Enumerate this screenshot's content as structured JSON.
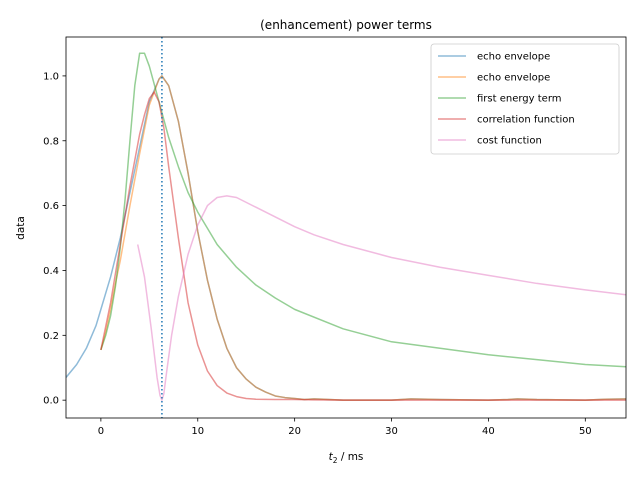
{
  "chart_data": {
    "type": "line",
    "title": "(enhancement) power terms",
    "xlabel_main": "t",
    "xlabel_sub": "2",
    "xlabel_rest": " / ms",
    "ylabel": "data",
    "xlim": [
      -3.6,
      54.2
    ],
    "ylim": [
      -0.055,
      1.12
    ],
    "xticks": [
      0,
      10,
      20,
      30,
      40,
      50
    ],
    "yticks": [
      0.0,
      0.2,
      0.4,
      0.6,
      0.8,
      1.0
    ],
    "xtick_labels": [
      "0",
      "10",
      "20",
      "30",
      "40",
      "50"
    ],
    "ytick_labels": [
      "0.0",
      "0.2",
      "0.4",
      "0.6",
      "0.8",
      "1.0"
    ],
    "vline": {
      "x": 6.3,
      "color": "#1f77b4",
      "style": "dotted"
    },
    "legend_position": "upper-right",
    "series": [
      {
        "name": "echo envelope",
        "color": "#1f77b4",
        "x": [
          -3.6,
          -2.5,
          -1.5,
          -0.5,
          0,
          1,
          2,
          3,
          4,
          5,
          6,
          6.3,
          7,
          8,
          9,
          10,
          11,
          12,
          13,
          14,
          15,
          16,
          17,
          18,
          19,
          20,
          21,
          22,
          23,
          25,
          28,
          30,
          32,
          35,
          38,
          40,
          42,
          43,
          45,
          48,
          50,
          52,
          54.2
        ],
        "y": [
          0.07,
          0.11,
          0.16,
          0.23,
          0.28,
          0.38,
          0.5,
          0.64,
          0.78,
          0.92,
          0.99,
          1.0,
          0.97,
          0.86,
          0.7,
          0.52,
          0.37,
          0.25,
          0.16,
          0.1,
          0.065,
          0.04,
          0.025,
          0.013,
          0.008,
          0.005,
          0.002,
          0.004,
          0.003,
          0.0,
          0.0,
          0.0,
          0.004,
          0.002,
          0.001,
          0.0,
          0.002,
          0.004,
          0.002,
          0.001,
          0.0,
          0.003,
          0.004
        ]
      },
      {
        "name": "echo envelope",
        "color": "#ff7f0e",
        "x": [
          0,
          0.5,
          1,
          1.5,
          2,
          3,
          4,
          5,
          6,
          6.3,
          7,
          8,
          9,
          10,
          11,
          12,
          13,
          14,
          15,
          16,
          17,
          18,
          19,
          20,
          21,
          22,
          23,
          25,
          28,
          30,
          32,
          35,
          38,
          40,
          42,
          43,
          45,
          48,
          50,
          52,
          54.2
        ],
        "y": [
          0.155,
          0.21,
          0.28,
          0.36,
          0.43,
          0.6,
          0.76,
          0.91,
          0.99,
          1.0,
          0.97,
          0.86,
          0.7,
          0.52,
          0.37,
          0.25,
          0.16,
          0.1,
          0.065,
          0.04,
          0.025,
          0.013,
          0.008,
          0.005,
          0.002,
          0.004,
          0.003,
          0.0,
          0.0,
          0.0,
          0.004,
          0.002,
          0.001,
          0.0,
          0.002,
          0.004,
          0.002,
          0.001,
          0.0,
          0.003,
          0.004
        ]
      },
      {
        "name": "first energy term",
        "color": "#2ca02c",
        "x": [
          0,
          0.5,
          1,
          1.5,
          2,
          2.5,
          3,
          3.5,
          4,
          4.5,
          5,
          6,
          7,
          8,
          9,
          10,
          12,
          14,
          16,
          18,
          20,
          25,
          30,
          35,
          40,
          45,
          50,
          54.2
        ],
        "y": [
          0.155,
          0.2,
          0.26,
          0.35,
          0.47,
          0.62,
          0.8,
          0.97,
          1.07,
          1.07,
          1.03,
          0.92,
          0.81,
          0.72,
          0.64,
          0.58,
          0.48,
          0.41,
          0.355,
          0.315,
          0.28,
          0.22,
          0.18,
          0.16,
          0.14,
          0.125,
          0.11,
          0.103
        ]
      },
      {
        "name": "correlation function",
        "color": "#d62728",
        "x": [
          0,
          1,
          2,
          3,
          4,
          4.5,
          5,
          5.5,
          6,
          6.5,
          7,
          8,
          9,
          10,
          11,
          12,
          13,
          14,
          15,
          16,
          18,
          20,
          22,
          25,
          30,
          35,
          40,
          45,
          50,
          54.2
        ],
        "y": [
          0.155,
          0.3,
          0.48,
          0.66,
          0.82,
          0.88,
          0.93,
          0.95,
          0.92,
          0.84,
          0.72,
          0.5,
          0.3,
          0.17,
          0.09,
          0.045,
          0.022,
          0.011,
          0.005,
          0.003,
          0.002,
          0.002,
          0.001,
          0.0,
          0.0,
          0.0,
          0.0,
          0.0,
          0.0,
          0.0
        ]
      },
      {
        "name": "cost function",
        "color": "#e377c2",
        "x": [
          3.8,
          4.5,
          5.2,
          5.8,
          6.1,
          6.3,
          6.5,
          6.8,
          7.3,
          8,
          9,
          10,
          11,
          12,
          13,
          14,
          15,
          16,
          18,
          20,
          22,
          25,
          30,
          35,
          40,
          45,
          50,
          54.2
        ],
        "y": [
          0.48,
          0.38,
          0.22,
          0.07,
          0.015,
          0.0,
          0.02,
          0.09,
          0.2,
          0.32,
          0.45,
          0.54,
          0.6,
          0.625,
          0.63,
          0.625,
          0.61,
          0.595,
          0.565,
          0.535,
          0.51,
          0.48,
          0.44,
          0.41,
          0.385,
          0.36,
          0.34,
          0.325
        ]
      }
    ]
  }
}
